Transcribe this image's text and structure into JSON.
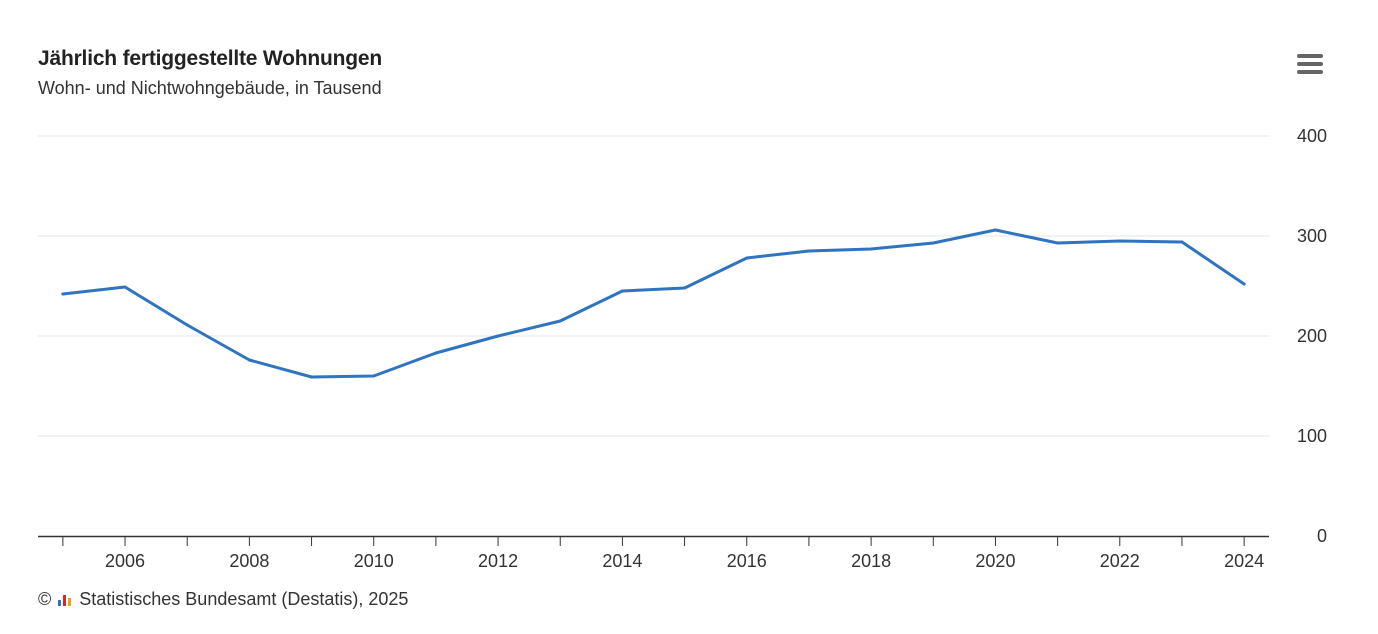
{
  "header": {
    "title": "Jährlich fertiggestellte Wohnungen",
    "subtitle": "Wohn- und Nichtwohngebäude, in Tausend"
  },
  "menu": {
    "icon": "hamburger-menu-icon"
  },
  "credits": {
    "copyright": "©",
    "logo_icon": "destatis-logo-icon",
    "text": "Statistisches Bundesamt (Destatis), 2025"
  },
  "chart_data": {
    "type": "line",
    "title": "Jährlich fertiggestellte Wohnungen",
    "subtitle": "Wohn- und Nichtwohngebäude, in Tausend",
    "xlabel": "",
    "ylabel": "",
    "x": [
      2005,
      2006,
      2007,
      2008,
      2009,
      2010,
      2011,
      2012,
      2013,
      2014,
      2015,
      2016,
      2017,
      2018,
      2019,
      2020,
      2021,
      2022,
      2023,
      2024
    ],
    "series": [
      {
        "values": [
          242,
          249,
          211,
          176,
          159,
          160,
          183,
          200,
          215,
          245,
          248,
          278,
          285,
          287,
          293,
          306,
          293,
          295,
          294,
          252
        ]
      }
    ],
    "xlim": [
      2004.6,
      2024.4
    ],
    "ylim": [
      0,
      400
    ],
    "x_tick_labels": [
      "2006",
      "2008",
      "2010",
      "2012",
      "2014",
      "2016",
      "2018",
      "2020",
      "2022",
      "2024"
    ],
    "y_tick_labels": [
      "0",
      "100",
      "200",
      "300",
      "400"
    ],
    "y_axis_position": "right",
    "grid": "horizontal",
    "legend": "none",
    "colors": {
      "line": "#2f74c0",
      "grid": "#e6e6e6",
      "axis": "#333333"
    }
  }
}
